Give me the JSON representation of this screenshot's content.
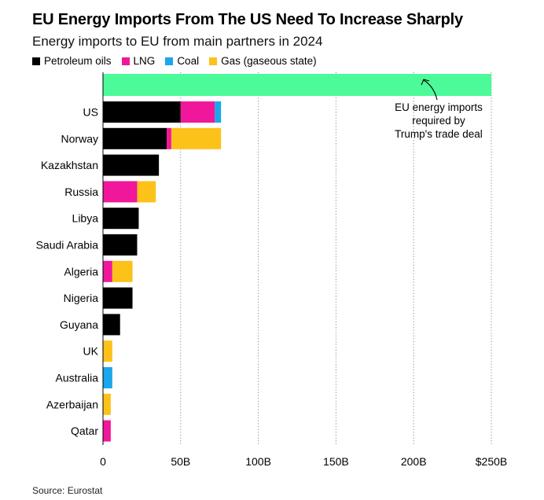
{
  "chart_data": {
    "type": "bar",
    "orientation": "horizontal",
    "stacked": true,
    "title": "EU Energy Imports From The US Need To Increase Sharply",
    "subtitle": "Energy imports to EU from main partners in 2024",
    "source": "Source: Eurostat",
    "categories": [
      "US",
      "Norway",
      "Kazakhstan",
      "Russia",
      "Libya",
      "Saudi Arabia",
      "Algeria",
      "Nigeria",
      "Guyana",
      "UK",
      "Australia",
      "Azerbaijan",
      "Qatar"
    ],
    "series": [
      {
        "name": "Petroleum oils",
        "color": "#000000",
        "values": [
          50,
          41,
          36,
          0,
          23,
          22,
          0,
          19,
          11,
          0,
          0,
          0,
          0
        ]
      },
      {
        "name": "LNG",
        "color": "#f0179b",
        "values": [
          22,
          3,
          0,
          22,
          0,
          0,
          6,
          0,
          0,
          0,
          0,
          0,
          5
        ]
      },
      {
        "name": "Coal",
        "color": "#1aa7ec",
        "values": [
          4,
          0,
          0,
          0,
          0,
          0,
          0,
          0,
          0,
          0,
          6,
          0,
          0
        ]
      },
      {
        "name": "Gas (gaseous state)",
        "color": "#fcc21a",
        "values": [
          0,
          32,
          0,
          12,
          0,
          0,
          13,
          0,
          0,
          6,
          0,
          5,
          0
        ]
      }
    ],
    "target": {
      "value": 250,
      "color": "#4dfa9a",
      "annotation": [
        "EU energy imports",
        "required by",
        "Trump's trade deal"
      ]
    },
    "xlim": [
      0,
      250
    ],
    "xticks": [
      0,
      50,
      100,
      150,
      200,
      250
    ],
    "xtick_labels": [
      "0",
      "50B",
      "100B",
      "150B",
      "200B",
      "$250B"
    ],
    "grid": "vertical dotted",
    "legend_position": "top-left"
  }
}
